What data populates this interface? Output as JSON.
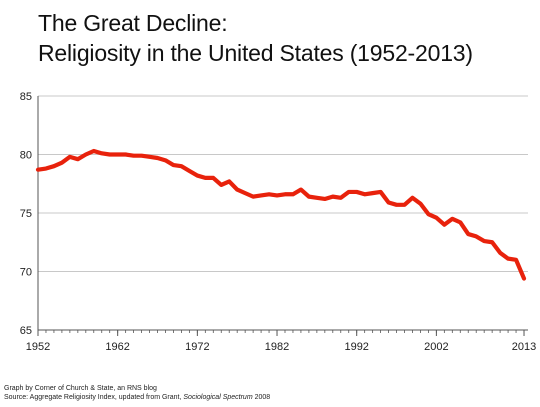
{
  "title_line1": "The Great Decline:",
  "title_line2": "Religiosity in the United States (1952-2013)",
  "footer": {
    "credit": "Graph by Corner of Church & State, an RNS blog",
    "source_prefix": "Source: Aggregate Religiosity Index, updated from Grant, ",
    "source_journal": "Sociological Spectrum",
    "source_year": " 2008"
  },
  "colors": {
    "line": "#e8220c",
    "grid": "#c8c8c8",
    "axis": "#555555"
  },
  "chart_data": {
    "type": "line",
    "title": "The Great Decline: Religiosity in the United States (1952-2013)",
    "xlabel": "",
    "ylabel": "",
    "xlim": [
      1952,
      2013.5
    ],
    "ylim": [
      65,
      85
    ],
    "x_ticks": [
      "1952",
      "1962",
      "1972",
      "1982",
      "1992",
      "2002",
      "2013"
    ],
    "y_ticks": [
      "65",
      "70",
      "75",
      "80",
      "85"
    ],
    "grid": true,
    "legend": "none",
    "series": [
      {
        "x": [
          1952,
          1953,
          1954,
          1955,
          1956,
          1957,
          1958,
          1959,
          1960,
          1961,
          1962,
          1963,
          1964,
          1965,
          1966,
          1967,
          1968,
          1969,
          1970,
          1971,
          1972,
          1973,
          1974,
          1975,
          1976,
          1977,
          1978,
          1979,
          1980,
          1981,
          1982,
          1983,
          1984,
          1985,
          1986,
          1987,
          1988,
          1989,
          1990,
          1991,
          1992,
          1993,
          1994,
          1995,
          1996,
          1997,
          1998,
          1999,
          2000,
          2001,
          2002,
          2003,
          2004,
          2005,
          2006,
          2007,
          2008,
          2009,
          2010,
          2011,
          2012,
          2013
        ],
        "values": [
          78.7,
          78.8,
          79.0,
          79.3,
          79.8,
          79.6,
          80.0,
          80.3,
          80.1,
          80.0,
          80.0,
          80.0,
          79.9,
          79.9,
          79.8,
          79.7,
          79.5,
          79.1,
          79.0,
          78.6,
          78.2,
          78.0,
          78.0,
          77.4,
          77.7,
          77.0,
          76.7,
          76.4,
          76.5,
          76.6,
          76.5,
          76.6,
          76.6,
          77.0,
          76.4,
          76.3,
          76.2,
          76.4,
          76.3,
          76.8,
          76.8,
          76.6,
          76.7,
          76.8,
          75.9,
          75.7,
          75.7,
          76.3,
          75.8,
          74.9,
          74.6,
          74.0,
          74.5,
          74.2,
          73.2,
          73.0,
          72.6,
          72.5,
          71.6,
          71.1,
          71.0,
          69.4
        ]
      }
    ]
  }
}
